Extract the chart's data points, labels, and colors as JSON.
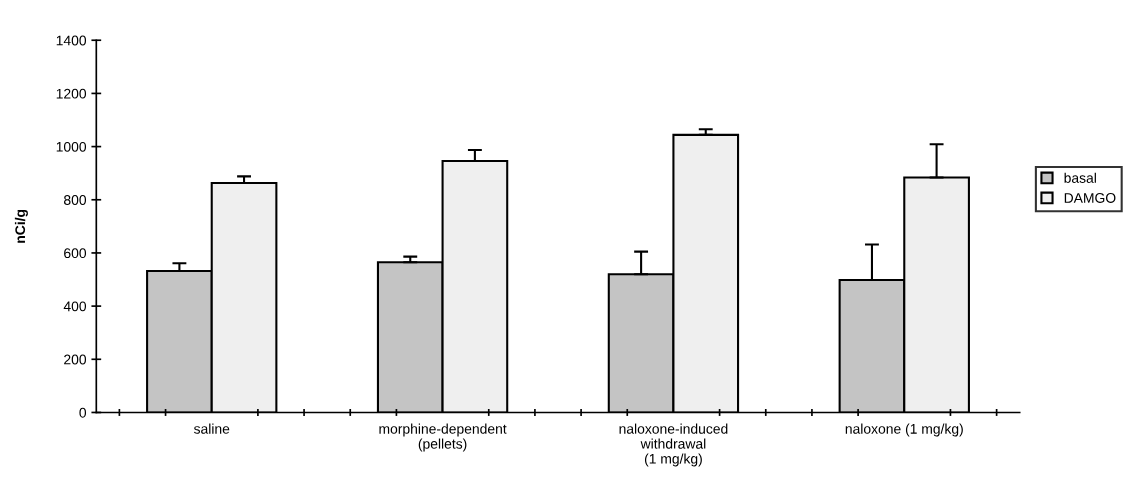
{
  "chart_data": {
    "type": "bar",
    "ylabel": "nCi/g",
    "categories": [
      "saline",
      "morphine-dependent\n(pellets)",
      "naloxone-induced\nwithdrawal\n(1 mg/kg)",
      "naloxone (1 mg/kg)"
    ],
    "series": [
      {
        "name": "basal",
        "color": "#c4c4c4",
        "values": [
          532,
          565,
          520,
          498
        ],
        "errors": [
          [
            532,
            561
          ],
          [
            565,
            586
          ],
          [
            520,
            605
          ],
          [
            498,
            632
          ]
        ]
      },
      {
        "name": "DAMGO",
        "color": "#efefef",
        "values": [
          863,
          946,
          1044,
          884
        ],
        "errors": [
          [
            863,
            888
          ],
          [
            946,
            987
          ],
          [
            1044,
            1065
          ],
          [
            884,
            1009
          ]
        ]
      }
    ],
    "ylim": [
      0,
      1400
    ],
    "yticks": [
      0,
      200,
      400,
      600,
      800,
      1000,
      1200,
      1400
    ],
    "grid": false,
    "legend": "right"
  }
}
